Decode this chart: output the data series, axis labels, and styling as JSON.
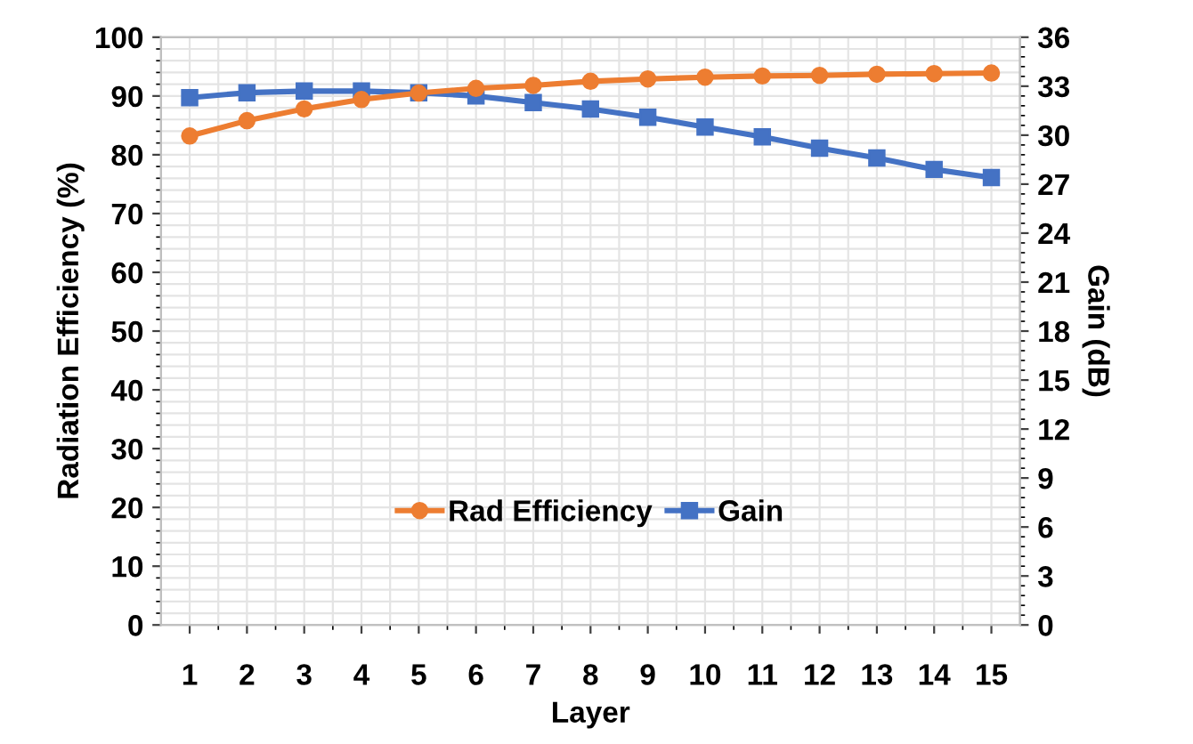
{
  "chart_data": {
    "type": "line",
    "xlabel": "Layer",
    "ylabel": "Radiation Efficiency (%)",
    "y2label": "Gain (dB)",
    "categories": [
      "1",
      "2",
      "3",
      "4",
      "5",
      "6",
      "7",
      "8",
      "9",
      "10",
      "11",
      "12",
      "13",
      "14",
      "15"
    ],
    "series": [
      {
        "name": "Rad Efficiency",
        "color": "#ed7d31",
        "marker": "circle",
        "values": [
          83.2,
          85.8,
          87.8,
          89.4,
          90.5,
          91.3,
          91.8,
          92.5,
          92.9,
          93.2,
          93.4,
          93.5,
          93.7,
          93.8,
          93.9
        ]
      },
      {
        "name": "Gain",
        "color": "#4472c4",
        "marker": "square",
        "axis": "y2",
        "values": [
          32.3,
          32.6,
          32.7,
          32.7,
          32.6,
          32.4,
          32.0,
          31.6,
          31.1,
          30.5,
          29.9,
          29.2,
          28.6,
          27.9,
          27.4
        ]
      }
    ],
    "ylim": [
      0,
      100
    ],
    "yticks": [
      0,
      10,
      20,
      30,
      40,
      50,
      60,
      70,
      80,
      90,
      100
    ],
    "y2lim": [
      0,
      36
    ],
    "y2ticks": [
      0,
      3,
      6,
      9,
      12,
      15,
      18,
      21,
      24,
      27,
      30,
      33,
      36
    ],
    "grid": true,
    "legend": "bottom",
    "line_style": "solid"
  }
}
